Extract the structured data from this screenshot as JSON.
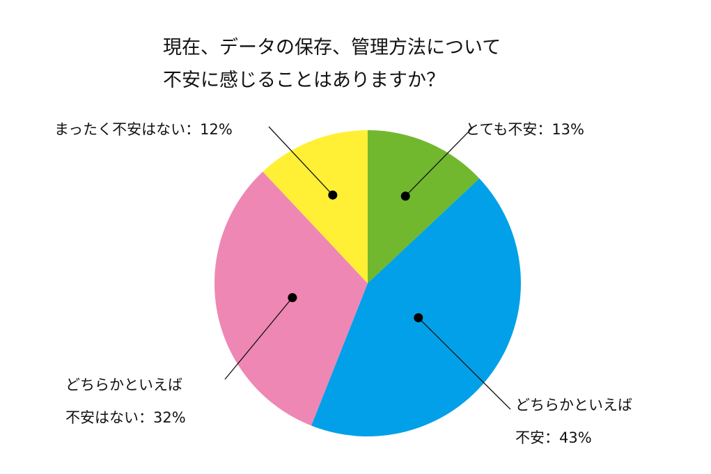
{
  "chart_data": {
    "type": "pie",
    "title_lines": [
      "現在、データの保存、管理方法について",
      "不安に感じることはありますか？"
    ],
    "slices": [
      {
        "name": "とても不安",
        "value": 13,
        "color": "#71b82f",
        "label_lines": [
          "とても不安：13%"
        ]
      },
      {
        "name": "どちらかといえば不安",
        "value": 43,
        "color": "#02a0e8",
        "label_lines": [
          "どちらかといえば",
          "不安：43%"
        ]
      },
      {
        "name": "どちらかといえば不安はない",
        "value": 32,
        "color": "#ee87b4",
        "label_lines": [
          "どちらかといえば",
          "不安はない：32%"
        ]
      },
      {
        "name": "まったく不安はない",
        "value": 12,
        "color": "#fff035",
        "label_lines": [
          "まったく不安はない：12%"
        ]
      }
    ],
    "start_angle": "12 o'clock",
    "direction": "clockwise",
    "legend": "none",
    "grid": false
  }
}
